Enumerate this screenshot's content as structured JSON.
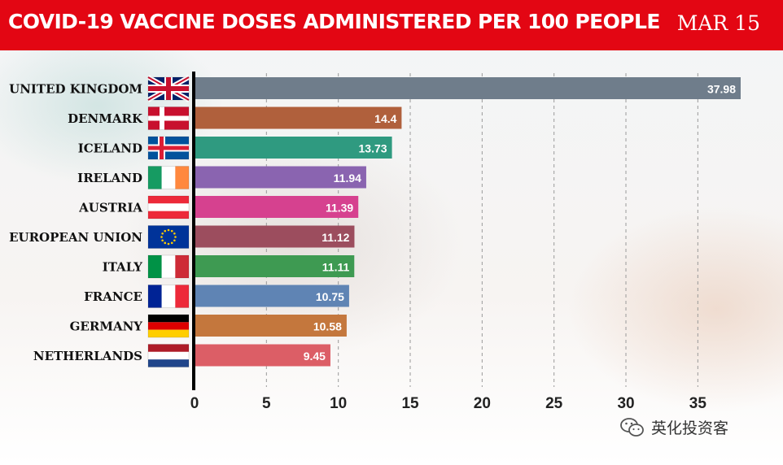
{
  "header": {
    "title": "COVID-19 VACCINE DOSES ADMINISTERED PER 100 PEOPLE",
    "date": "MAR 15",
    "background_color": "#e30613"
  },
  "watermark": {
    "text": "英化投资客",
    "icon": "wechat-icon"
  },
  "chart_data": {
    "type": "bar",
    "orientation": "horizontal",
    "title": "COVID-19 VACCINE DOSES ADMINISTERED PER 100 PEOPLE",
    "xlabel": "",
    "ylabel": "",
    "xlim": [
      0,
      37.98
    ],
    "xticks": [
      0,
      5,
      10,
      15,
      20,
      25,
      30,
      35
    ],
    "grid": "vertical dashed",
    "categories": [
      "UNITED KINGDOM",
      "DENMARK",
      "ICELAND",
      "IRELAND",
      "AUSTRIA",
      "EUROPEAN UNION",
      "ITALY",
      "FRANCE",
      "GERMANY",
      "NETHERLANDS"
    ],
    "values": [
      37.98,
      14.4,
      13.73,
      11.94,
      11.39,
      11.12,
      11.11,
      10.75,
      10.58,
      9.45
    ],
    "value_labels": [
      "37.98",
      "14.4",
      "13.73",
      "11.94",
      "11.39",
      "11.12",
      "11.11",
      "10.75",
      "10.58",
      "9.45"
    ],
    "colors": [
      "#6f7d8b",
      "#b0603c",
      "#2f9a80",
      "#8a64b0",
      "#d6418f",
      "#9c4d5e",
      "#3e9a52",
      "#5f84b4",
      "#c4773d",
      "#dc5e66"
    ],
    "flags": [
      "flag-uk-icon",
      "flag-denmark-icon",
      "flag-iceland-icon",
      "flag-ireland-icon",
      "flag-austria-icon",
      "flag-eu-icon",
      "flag-italy-icon",
      "flag-france-icon",
      "flag-germany-icon",
      "flag-netherlands-icon"
    ]
  }
}
